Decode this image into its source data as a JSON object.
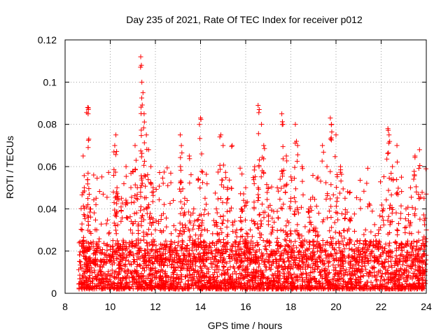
{
  "chart_data": {
    "type": "scatter",
    "title": "Day 235 of 2021, Rate Of TEC Index for receiver p012",
    "xlabel": "GPS time / hours",
    "ylabel": "ROTI / TECUs",
    "xlim": [
      8,
      24
    ],
    "ylim": [
      0,
      0.12
    ],
    "xticks": [
      "8",
      "10",
      "12",
      "14",
      "16",
      "18",
      "20",
      "22",
      "24"
    ],
    "yticks": [
      "0",
      "0.02",
      "0.04",
      "0.06",
      "0.08",
      "0.1",
      "0.12"
    ],
    "grid": true,
    "marker": "+",
    "color": "#ff0000",
    "points": [
      [
        8.7,
        0.012
      ],
      [
        8.75,
        0.03
      ],
      [
        8.8,
        0.065
      ],
      [
        8.85,
        0.05
      ],
      [
        8.9,
        0.02
      ],
      [
        9.0,
        0.088
      ],
      [
        9.02,
        0.085
      ],
      [
        9.05,
        0.073
      ],
      [
        9.1,
        0.04
      ],
      [
        9.2,
        0.015
      ],
      [
        9.4,
        0.03
      ],
      [
        9.6,
        0.01
      ],
      [
        9.8,
        0.018
      ],
      [
        10.0,
        0.022
      ],
      [
        10.2,
        0.07
      ],
      [
        10.25,
        0.075
      ],
      [
        10.3,
        0.05
      ],
      [
        10.5,
        0.045
      ],
      [
        10.7,
        0.06
      ],
      [
        10.9,
        0.03
      ],
      [
        11.1,
        0.07
      ],
      [
        11.2,
        0.05
      ],
      [
        11.35,
        0.112
      ],
      [
        11.38,
        0.108
      ],
      [
        11.4,
        0.1
      ],
      [
        11.45,
        0.095
      ],
      [
        11.5,
        0.085
      ],
      [
        11.6,
        0.075
      ],
      [
        11.7,
        0.068
      ],
      [
        11.8,
        0.06
      ],
      [
        11.9,
        0.05
      ],
      [
        12.0,
        0.03
      ],
      [
        12.3,
        0.015
      ],
      [
        12.6,
        0.02
      ],
      [
        12.9,
        0.03
      ],
      [
        13.1,
        0.075
      ],
      [
        13.15,
        0.07
      ],
      [
        13.3,
        0.045
      ],
      [
        13.5,
        0.065
      ],
      [
        13.7,
        0.04
      ],
      [
        13.9,
        0.035
      ],
      [
        14.0,
        0.083
      ],
      [
        14.05,
        0.066
      ],
      [
        14.2,
        0.045
      ],
      [
        14.5,
        0.02
      ],
      [
        14.7,
        0.04
      ],
      [
        14.9,
        0.075
      ],
      [
        15.0,
        0.07
      ],
      [
        15.2,
        0.05
      ],
      [
        15.4,
        0.07
      ],
      [
        15.6,
        0.03
      ],
      [
        15.8,
        0.04
      ],
      [
        16.0,
        0.05
      ],
      [
        16.2,
        0.03
      ],
      [
        16.4,
        0.06
      ],
      [
        16.55,
        0.089
      ],
      [
        16.6,
        0.087
      ],
      [
        16.7,
        0.08
      ],
      [
        16.8,
        0.07
      ],
      [
        17.0,
        0.05
      ],
      [
        17.2,
        0.03
      ],
      [
        17.4,
        0.05
      ],
      [
        17.6,
        0.085
      ],
      [
        17.65,
        0.08
      ],
      [
        17.8,
        0.065
      ],
      [
        18.0,
        0.045
      ],
      [
        18.2,
        0.08
      ],
      [
        18.3,
        0.07
      ],
      [
        18.5,
        0.06
      ],
      [
        18.8,
        0.04
      ],
      [
        19.0,
        0.03
      ],
      [
        19.2,
        0.055
      ],
      [
        19.4,
        0.07
      ],
      [
        19.6,
        0.06
      ],
      [
        19.75,
        0.083
      ],
      [
        19.8,
        0.08
      ],
      [
        20.0,
        0.075
      ],
      [
        20.2,
        0.06
      ],
      [
        20.4,
        0.045
      ],
      [
        20.6,
        0.035
      ],
      [
        20.8,
        0.02
      ],
      [
        21.0,
        0.02
      ],
      [
        21.3,
        0.025
      ],
      [
        21.6,
        0.02
      ],
      [
        21.9,
        0.03
      ],
      [
        22.1,
        0.04
      ],
      [
        22.3,
        0.078
      ],
      [
        22.35,
        0.075
      ],
      [
        22.5,
        0.06
      ],
      [
        22.7,
        0.07
      ],
      [
        22.9,
        0.055
      ],
      [
        23.1,
        0.04
      ],
      [
        23.3,
        0.05
      ],
      [
        23.5,
        0.065
      ],
      [
        23.7,
        0.068
      ],
      [
        23.9,
        0.045
      ],
      [
        24.0,
        0.03
      ],
      [
        8.8,
        0.008
      ],
      [
        9.3,
        0.01
      ],
      [
        9.9,
        0.009
      ],
      [
        10.4,
        0.012
      ],
      [
        10.9,
        0.01
      ],
      [
        11.5,
        0.014
      ],
      [
        12.2,
        0.008
      ],
      [
        12.8,
        0.009
      ],
      [
        13.4,
        0.011
      ],
      [
        14.1,
        0.008
      ],
      [
        14.6,
        0.003
      ],
      [
        15.1,
        0.01
      ],
      [
        15.7,
        0.012
      ],
      [
        16.3,
        0.009
      ],
      [
        16.9,
        0.011
      ],
      [
        17.5,
        0.01
      ],
      [
        18.1,
        0.012
      ],
      [
        18.7,
        0.009
      ],
      [
        19.3,
        0.01
      ],
      [
        19.9,
        0.011
      ],
      [
        20.5,
        0.009
      ],
      [
        21.1,
        0.008
      ],
      [
        21.7,
        0.01
      ],
      [
        22.4,
        0.009
      ],
      [
        23.0,
        0.01
      ],
      [
        23.6,
        0.011
      ],
      [
        23.95,
        0.006
      ]
    ],
    "dense_band": {
      "x_start": 8.6,
      "x_end": 24.0,
      "y_low": 0.002,
      "y_high": 0.025
    }
  }
}
